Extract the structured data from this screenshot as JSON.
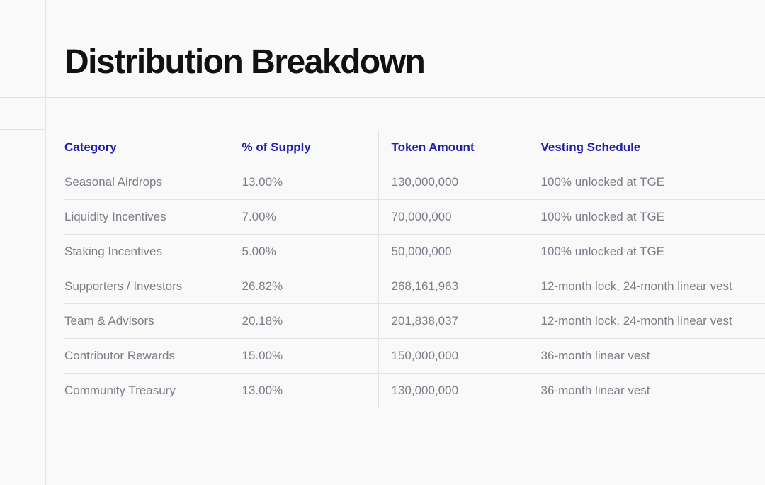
{
  "page": {
    "title": "Distribution Breakdown"
  },
  "table": {
    "headers": {
      "category": "Category",
      "supply": "% of Supply",
      "amount": "Token Amount",
      "vesting": "Vesting Schedule"
    },
    "rows": [
      {
        "category": "Seasonal Airdrops",
        "supply": "13.00%",
        "amount": "130,000,000",
        "vesting": "100% unlocked at TGE"
      },
      {
        "category": "Liquidity Incentives",
        "supply": "7.00%",
        "amount": "70,000,000",
        "vesting": "100% unlocked at TGE"
      },
      {
        "category": "Staking Incentives",
        "supply": "5.00%",
        "amount": "50,000,000",
        "vesting": "100% unlocked at TGE"
      },
      {
        "category": "Supporters / Investors",
        "supply": "26.82%",
        "amount": "268,161,963",
        "vesting": "12-month lock, 24-month linear vest"
      },
      {
        "category": "Team & Advisors",
        "supply": "20.18%",
        "amount": "201,838,037",
        "vesting": "12-month lock, 24-month linear vest"
      },
      {
        "category": "Contributor Rewards",
        "supply": "15.00%",
        "amount": "150,000,000",
        "vesting": "36-month linear vest"
      },
      {
        "category": "Community Treasury",
        "supply": "13.00%",
        "amount": "130,000,000",
        "vesting": "36-month linear vest"
      }
    ]
  },
  "colors": {
    "header_text": "#1f1faa",
    "body_text": "#7d7d87",
    "title_text": "#111111",
    "border": "#e3e3e7",
    "background": "#f9f9fa"
  }
}
